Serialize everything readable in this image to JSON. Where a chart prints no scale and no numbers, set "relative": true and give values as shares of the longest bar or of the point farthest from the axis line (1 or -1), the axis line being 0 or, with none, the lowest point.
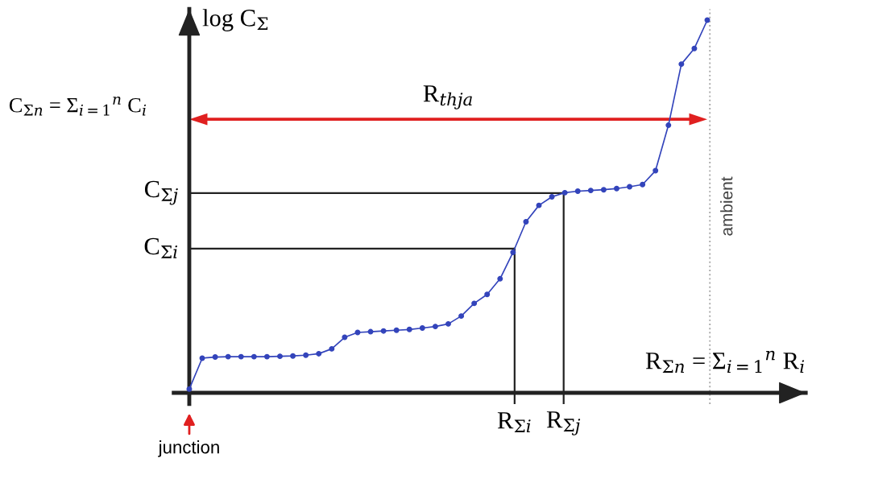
{
  "chart_data": {
    "type": "line",
    "relative": true,
    "ylabel": "log C$_{Σ}$",
    "xlabel": "R$_{Σn}$ = Σ$_{i=1}$$^{n}$ R$_{i}$",
    "annotations": [
      "C$_{Σn}$ = Σ$_{i=1}$$^{n}$ C$_{i}$",
      "R$_{thja}$",
      "junction",
      "ambient",
      "R$_{Σi}$",
      "R$_{Σj}$"
    ],
    "categories": [
      null,
      null,
      null,
      null,
      null,
      null,
      null,
      null,
      null,
      null,
      null,
      null,
      null,
      null,
      null,
      null,
      null,
      null,
      null,
      null,
      null,
      null,
      null,
      null,
      null,
      null,
      null,
      null,
      null,
      null,
      null,
      null,
      null,
      null,
      null,
      null,
      null,
      null,
      null,
      null,
      null
    ],
    "series": [
      {
        "color": "#3344bb",
        "values": [
          0.01,
          0.093,
          0.096,
          0.097,
          0.097,
          0.097,
          0.097,
          0.098,
          0.099,
          0.101,
          0.105,
          0.118,
          0.149,
          0.162,
          0.164,
          0.166,
          0.168,
          0.17,
          0.174,
          0.178,
          0.185,
          0.206,
          0.24,
          0.264,
          0.306,
          0.377,
          0.459,
          0.503,
          0.526,
          0.537,
          0.541,
          0.543,
          0.545,
          0.548,
          0.553,
          0.559,
          0.596,
          0.718,
          0.882,
          0.924,
          1.0
        ]
      }
    ],
    "marker": "circle",
    "ref_lines": [
      {
        "axis": "y",
        "value": 0.387,
        "label": "C$_{Σi}$",
        "color": "#222222"
      },
      {
        "axis": "y",
        "value": 0.536,
        "label": "C$_{Σj}$",
        "color": "#222222"
      }
    ]
  }
}
